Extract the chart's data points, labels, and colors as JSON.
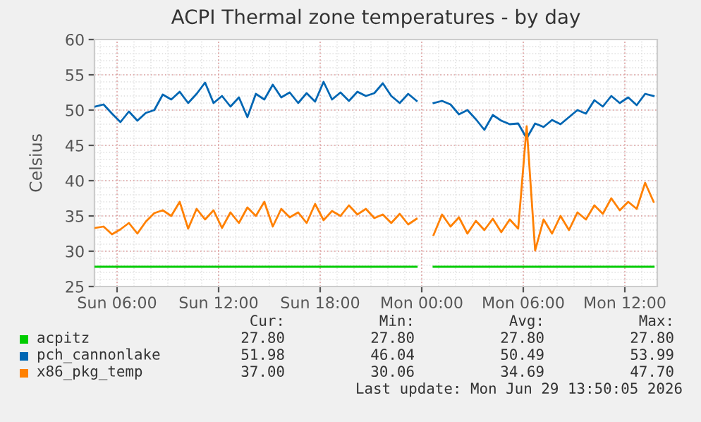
{
  "chart_data": {
    "type": "line",
    "title": "ACPI Thermal zone temperatures - by day",
    "ylabel": "Celsius",
    "x": [
      "2026-06-28T04:42",
      "2026-06-28T05:12",
      "2026-06-28T05:42",
      "2026-06-28T06:12",
      "2026-06-28T06:42",
      "2026-06-28T07:12",
      "2026-06-28T07:42",
      "2026-06-28T08:12",
      "2026-06-28T08:42",
      "2026-06-28T09:12",
      "2026-06-28T09:42",
      "2026-06-28T10:12",
      "2026-06-28T10:42",
      "2026-06-28T11:12",
      "2026-06-28T11:42",
      "2026-06-28T12:12",
      "2026-06-28T12:42",
      "2026-06-28T13:12",
      "2026-06-28T13:42",
      "2026-06-28T14:12",
      "2026-06-28T14:42",
      "2026-06-28T15:12",
      "2026-06-28T15:42",
      "2026-06-28T16:12",
      "2026-06-28T16:42",
      "2026-06-28T17:12",
      "2026-06-28T17:42",
      "2026-06-28T18:12",
      "2026-06-28T18:42",
      "2026-06-28T19:12",
      "2026-06-28T19:42",
      "2026-06-28T20:12",
      "2026-06-28T20:42",
      "2026-06-28T21:12",
      "2026-06-28T21:42",
      "2026-06-28T22:12",
      "2026-06-28T22:42",
      "2026-06-28T23:12",
      "2026-06-28T23:42",
      "2026-06-29T00:12",
      "2026-06-29T00:42",
      "2026-06-29T01:12",
      "2026-06-29T01:42",
      "2026-06-29T02:12",
      "2026-06-29T02:42",
      "2026-06-29T03:12",
      "2026-06-29T03:42",
      "2026-06-29T04:12",
      "2026-06-29T04:42",
      "2026-06-29T05:12",
      "2026-06-29T05:42",
      "2026-06-29T06:12",
      "2026-06-29T06:42",
      "2026-06-29T07:12",
      "2026-06-29T07:42",
      "2026-06-29T08:12",
      "2026-06-29T08:42",
      "2026-06-29T09:12",
      "2026-06-29T09:42",
      "2026-06-29T10:12",
      "2026-06-29T10:42",
      "2026-06-29T11:12",
      "2026-06-29T11:42",
      "2026-06-29T12:12",
      "2026-06-29T12:42",
      "2026-06-29T13:12",
      "2026-06-29T13:42"
    ],
    "series": [
      {
        "name": "acpitz",
        "color": "#00cc00",
        "values": [
          27.8,
          27.8,
          27.8,
          27.8,
          27.8,
          27.8,
          27.8,
          27.8,
          27.8,
          27.8,
          27.8,
          27.8,
          27.8,
          27.8,
          27.8,
          27.8,
          27.8,
          27.8,
          27.8,
          27.8,
          27.8,
          27.8,
          27.8,
          27.8,
          27.8,
          27.8,
          27.8,
          27.8,
          27.8,
          27.8,
          27.8,
          27.8,
          27.8,
          27.8,
          27.8,
          27.8,
          27.8,
          27.8,
          27.8,
          null,
          27.8,
          27.8,
          27.8,
          27.8,
          27.8,
          27.8,
          27.8,
          27.8,
          27.8,
          27.8,
          27.8,
          27.8,
          27.8,
          27.8,
          27.8,
          27.8,
          27.8,
          27.8,
          27.8,
          27.8,
          27.8,
          27.8,
          27.8,
          27.8,
          27.8,
          27.8,
          27.8
        ]
      },
      {
        "name": "pch_cannonlake",
        "color": "#0066b3",
        "values": [
          50.5,
          50.8,
          49.5,
          48.3,
          49.8,
          48.5,
          49.6,
          50,
          52.2,
          51.5,
          52.6,
          51,
          52.3,
          53.9,
          51,
          52,
          50.5,
          51.8,
          49,
          52.3,
          51.5,
          53.6,
          51.8,
          52.5,
          51,
          52.4,
          51.2,
          54,
          51.5,
          52.5,
          51.3,
          52.6,
          52,
          52.4,
          53.8,
          52,
          51,
          52.3,
          51.3,
          null,
          51,
          51.3,
          50.8,
          49.4,
          50,
          48.7,
          47.2,
          49.3,
          48.5,
          48,
          48.1,
          46,
          48.1,
          47.6,
          48.6,
          48,
          49,
          50,
          49.5,
          51.4,
          50.5,
          52,
          51,
          51.8,
          50.7,
          52.3,
          52
        ]
      },
      {
        "name": "x86_pkg_temp",
        "color": "#ff8000",
        "values": [
          33.3,
          33.5,
          32.4,
          33.1,
          34,
          32.5,
          34.2,
          35.4,
          35.8,
          35,
          37,
          33.2,
          36,
          34.5,
          35.8,
          33.3,
          35.5,
          34,
          36.2,
          35,
          37,
          33.5,
          36,
          34.8,
          35.5,
          34,
          36.7,
          34.4,
          35.7,
          35,
          36.5,
          35.2,
          36,
          34.7,
          35.2,
          34,
          35.3,
          33.8,
          34.6,
          null,
          32.3,
          35.2,
          33.5,
          34.8,
          32.5,
          34.3,
          33,
          34.6,
          32.7,
          34.5,
          33.2,
          47.7,
          30.1,
          34.5,
          32.5,
          35,
          33,
          35.5,
          34.5,
          36.5,
          35.3,
          37.5,
          35.8,
          37,
          36,
          39.7,
          37
        ]
      }
    ],
    "xlim": [
      "2026-06-28T04:40",
      "2026-06-29T13:55"
    ],
    "xticks": [
      {
        "value": "2026-06-28T06:00",
        "label": "Sun 06:00"
      },
      {
        "value": "2026-06-28T12:00",
        "label": "Sun 12:00"
      },
      {
        "value": "2026-06-28T18:00",
        "label": "Sun 18:00"
      },
      {
        "value": "2026-06-29T00:00",
        "label": "Mon 00:00"
      },
      {
        "value": "2026-06-29T06:00",
        "label": "Mon 06:00"
      },
      {
        "value": "2026-06-29T12:00",
        "label": "Mon 12:00"
      }
    ],
    "ylim": [
      25,
      60
    ],
    "yticks": [
      25,
      30,
      35,
      40,
      45,
      50,
      55,
      60
    ],
    "grid": true,
    "legend": "bottom left",
    "annotations": [
      "Cur:",
      "Min:",
      "Avg:",
      "Max:",
      "27.80",
      "27.80",
      "27.80",
      "27.80",
      "51.98",
      "46.04",
      "50.49",
      "53.99",
      "37.00",
      "30.06",
      "34.69",
      "47.70",
      "Last update: Mon Jun 29 13:50:05 2026"
    ]
  }
}
